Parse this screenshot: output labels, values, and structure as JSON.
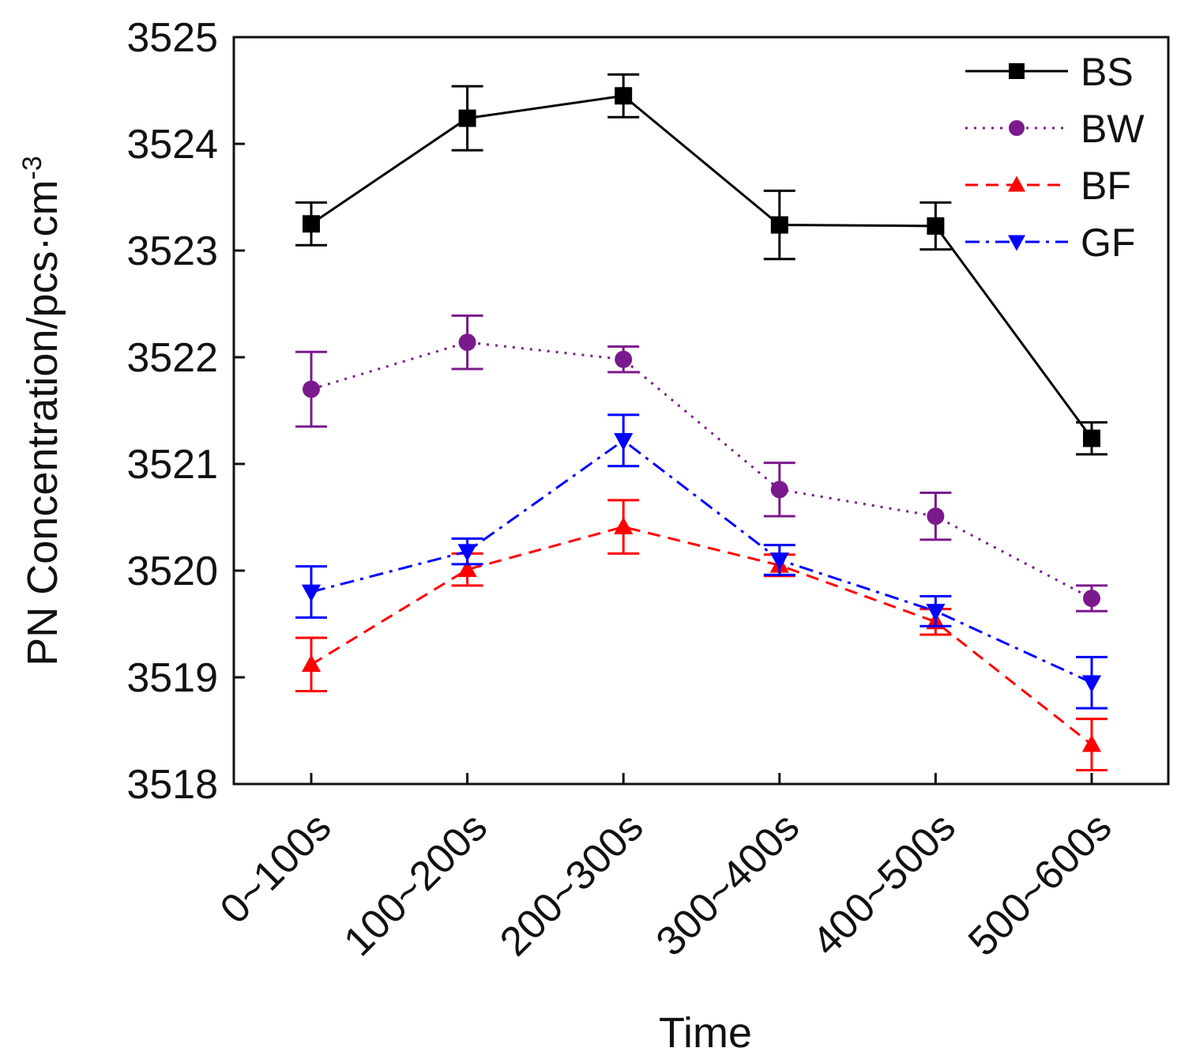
{
  "chart_data": {
    "type": "line",
    "title": "",
    "xlabel": "Time",
    "ylabel": "PN Concentration/pcs·cm",
    "ylabel_superscript": "-3",
    "categories": [
      "0~100s",
      "100~200s",
      "200~300s",
      "300~400s",
      "400~500s",
      "500~600s"
    ],
    "ylim": [
      3518,
      3525
    ],
    "yticks": [
      "3518",
      "3519",
      "3520",
      "3521",
      "3522",
      "3523",
      "3524",
      "3525"
    ],
    "legend_position": "top-right",
    "series": [
      {
        "name": "BS",
        "color": "#000000",
        "marker": "square",
        "line": "solid",
        "values": [
          3523.25,
          3524.24,
          3524.45,
          3523.24,
          3523.23,
          3521.24
        ],
        "errors": [
          0.2,
          0.3,
          0.2,
          0.32,
          0.22,
          0.15
        ]
      },
      {
        "name": "BW",
        "color": "#7B1A8C",
        "marker": "circle",
        "line": "dotted",
        "values": [
          3521.7,
          3522.14,
          3521.98,
          3520.76,
          3520.51,
          3519.74
        ],
        "errors": [
          0.35,
          0.25,
          0.12,
          0.25,
          0.22,
          0.12
        ]
      },
      {
        "name": "BF",
        "color": "#FF0000",
        "marker": "triangle-up",
        "line": "dashed",
        "values": [
          3519.12,
          3520.01,
          3520.41,
          3520.05,
          3519.52,
          3518.37
        ],
        "errors": [
          0.25,
          0.15,
          0.25,
          0.1,
          0.12,
          0.24
        ]
      },
      {
        "name": "GF",
        "color": "#0000FF",
        "marker": "triangle-down",
        "line": "dashdot",
        "values": [
          3519.8,
          3520.18,
          3521.22,
          3520.1,
          3519.62,
          3518.95
        ],
        "errors": [
          0.24,
          0.12,
          0.24,
          0.14,
          0.14,
          0.24
        ]
      }
    ]
  }
}
